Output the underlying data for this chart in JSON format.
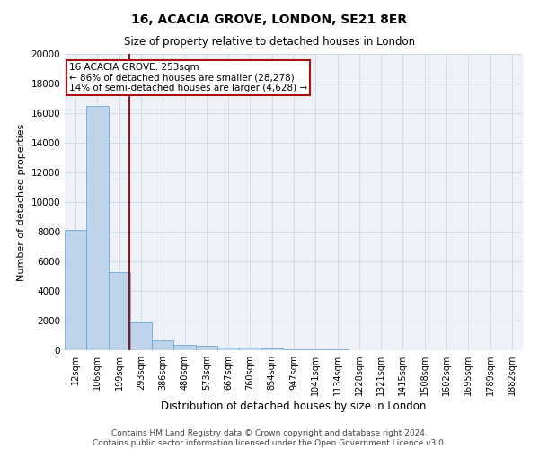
{
  "title": "16, ACACIA GROVE, LONDON, SE21 8ER",
  "subtitle": "Size of property relative to detached houses in London",
  "xlabel": "Distribution of detached houses by size in London",
  "ylabel": "Number of detached properties",
  "footer_line1": "Contains HM Land Registry data © Crown copyright and database right 2024.",
  "footer_line2": "Contains public sector information licensed under the Open Government Licence v3.0.",
  "bar_labels": [
    "12sqm",
    "106sqm",
    "199sqm",
    "293sqm",
    "386sqm",
    "480sqm",
    "573sqm",
    "667sqm",
    "760sqm",
    "854sqm",
    "947sqm",
    "1041sqm",
    "1134sqm",
    "1228sqm",
    "1321sqm",
    "1415sqm",
    "1508sqm",
    "1602sqm",
    "1695sqm",
    "1789sqm",
    "1882sqm"
  ],
  "bar_heights": [
    8100,
    16500,
    5300,
    1850,
    650,
    350,
    280,
    200,
    170,
    120,
    80,
    50,
    35,
    25,
    18,
    12,
    8,
    6,
    5,
    4,
    3
  ],
  "bar_color": "#bfd4ea",
  "bar_edge_color": "#5a9fd4",
  "grid_color": "#d0dce8",
  "background_color": "#eef2f8",
  "vline_x_index": 2.45,
  "vline_color": "#8b1a1a",
  "annotation_line1": "16 ACACIA GROVE: 253sqm",
  "annotation_line2": "← 86% of detached houses are smaller (28,278)",
  "annotation_line3": "14% of semi-detached houses are larger (4,628) →",
  "annotation_box_color": "#aa1111",
  "ylim": [
    0,
    20000
  ],
  "yticks": [
    0,
    2000,
    4000,
    6000,
    8000,
    10000,
    12000,
    14000,
    16000,
    18000,
    20000
  ],
  "title_fontsize": 10,
  "subtitle_fontsize": 8.5,
  "ylabel_fontsize": 8,
  "xlabel_fontsize": 8.5,
  "tick_fontsize": 7,
  "annot_fontsize": 7.5,
  "footer_fontsize": 6.5
}
